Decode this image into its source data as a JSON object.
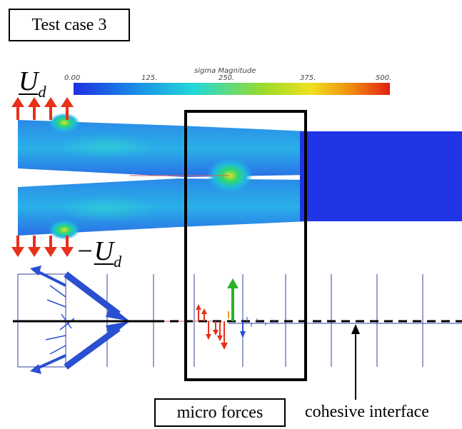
{
  "title": "Test case 3",
  "colorbar": {
    "title": "sigma Magnitude",
    "ticks": [
      "0.00",
      "125.",
      "250.",
      "375.",
      "500."
    ],
    "colors": [
      "#1f2fe0",
      "#1a8fe8",
      "#22d8d8",
      "#9adb2a",
      "#f0e020",
      "#f08a10",
      "#e02010"
    ]
  },
  "top_load_label": {
    "symbol": "U",
    "subscript": "d",
    "sign": ""
  },
  "bottom_load_label": {
    "symbol": "U",
    "subscript": "d",
    "sign": "−"
  },
  "bottom_labels": {
    "micro_forces": "micro forces",
    "cohesive_interface": "cohesive interface"
  },
  "colors": {
    "mesh_blue": "#1f35e6",
    "arrow_red": "#e8301a",
    "arrow_green": "#2ab02a",
    "arrow_blue": "#2a4fd0"
  }
}
